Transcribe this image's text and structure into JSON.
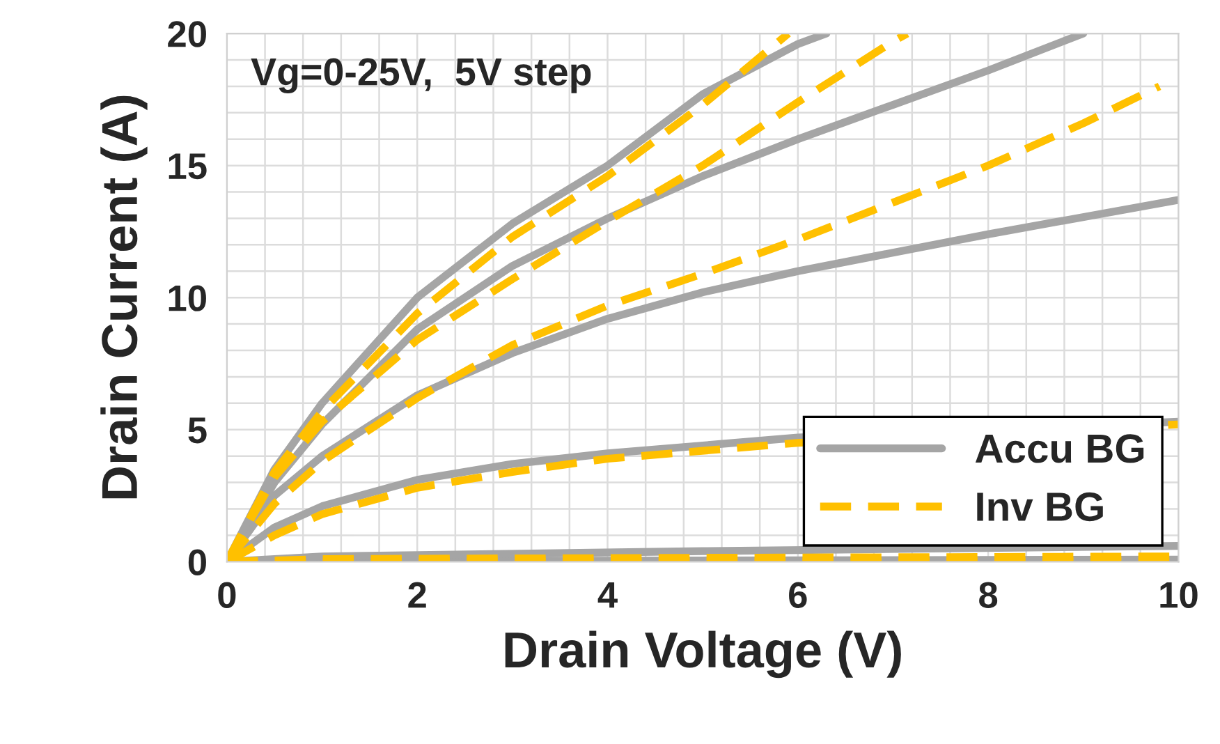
{
  "chart_data": {
    "type": "line",
    "xlabel": "Drain Voltage (V)",
    "ylabel": "Drain Current (A)",
    "annotations": [
      "Vg=0-25V,  5V step"
    ],
    "xlim": [
      0,
      10
    ],
    "ylim": [
      0,
      20
    ],
    "xticks": [
      0,
      2,
      4,
      6,
      8,
      10
    ],
    "yticks": [
      0,
      5,
      10,
      15,
      20
    ],
    "grid": true,
    "legend": "bottom right",
    "marker": "none",
    "series": [
      {
        "name": "Accu BG",
        "color": "#a5a5a5",
        "line_style": "solid",
        "x": [
          0,
          1,
          5,
          10
        ],
        "values": [
          0,
          0.02,
          0.05,
          0.08
        ]
      },
      {
        "color": "#a5a5a5",
        "line_style": "solid",
        "x": [
          0,
          1,
          5,
          10
        ],
        "values": [
          0,
          0.2,
          0.4,
          0.6
        ]
      },
      {
        "color": "#a5a5a5",
        "line_style": "solid",
        "x": [
          0,
          0.5,
          1,
          2,
          3,
          4,
          6,
          10
        ],
        "values": [
          0,
          1.3,
          2.1,
          3.1,
          3.7,
          4.1,
          4.7,
          5.3
        ]
      },
      {
        "color": "#a5a5a5",
        "line_style": "solid",
        "x": [
          0,
          0.5,
          1,
          2,
          3,
          4,
          5,
          6,
          8,
          10
        ],
        "values": [
          0,
          2.5,
          4.0,
          6.3,
          7.9,
          9.2,
          10.2,
          11.0,
          12.4,
          13.7
        ]
      },
      {
        "color": "#a5a5a5",
        "line_style": "solid",
        "x": [
          0,
          0.5,
          1,
          2,
          3,
          4,
          5,
          6,
          7,
          8,
          9
        ],
        "values": [
          0,
          3.0,
          5.2,
          8.8,
          11.2,
          13.0,
          14.6,
          16.0,
          17.3,
          18.6,
          20.0
        ]
      },
      {
        "color": "#a5a5a5",
        "line_style": "solid",
        "x": [
          0,
          0.5,
          1,
          2,
          3,
          4,
          5,
          6,
          6.3
        ],
        "values": [
          0,
          3.5,
          6.0,
          10.0,
          12.8,
          15.0,
          17.7,
          19.6,
          20.0
        ]
      },
      {
        "name": "Inv BG",
        "color": "#ffc000",
        "line_style": "dashed",
        "x": [
          0,
          1,
          5,
          10
        ],
        "values": [
          0,
          0.01,
          0.02,
          0.03
        ]
      },
      {
        "color": "#ffc000",
        "line_style": "dashed",
        "x": [
          0,
          1,
          5,
          10
        ],
        "values": [
          0,
          0.1,
          0.15,
          0.2
        ]
      },
      {
        "color": "#ffc000",
        "line_style": "dashed",
        "x": [
          0,
          0.5,
          1,
          2,
          3,
          4,
          6,
          10
        ],
        "values": [
          0,
          1.0,
          1.8,
          2.8,
          3.4,
          3.9,
          4.5,
          5.2
        ]
      },
      {
        "color": "#ffc000",
        "line_style": "dashed",
        "x": [
          0,
          0.5,
          1,
          2,
          3,
          4,
          5,
          6,
          7,
          8,
          9,
          9.8
        ],
        "values": [
          0,
          2.2,
          3.8,
          6.2,
          8.2,
          9.7,
          10.9,
          12.2,
          13.6,
          15.0,
          16.6,
          18.0
        ]
      },
      {
        "color": "#ffc000",
        "line_style": "dashed",
        "x": [
          0,
          0.5,
          1,
          2,
          3,
          4,
          5,
          6,
          7,
          7.15
        ],
        "values": [
          0,
          3.2,
          5.3,
          8.4,
          10.7,
          12.9,
          15.0,
          17.4,
          19.7,
          20.0
        ]
      },
      {
        "color": "#ffc000",
        "line_style": "dashed",
        "x": [
          0,
          0.5,
          1,
          2,
          3,
          4,
          5,
          5.9
        ],
        "values": [
          0,
          3.4,
          5.7,
          9.4,
          12.3,
          14.6,
          17.3,
          20.0
        ]
      }
    ]
  }
}
